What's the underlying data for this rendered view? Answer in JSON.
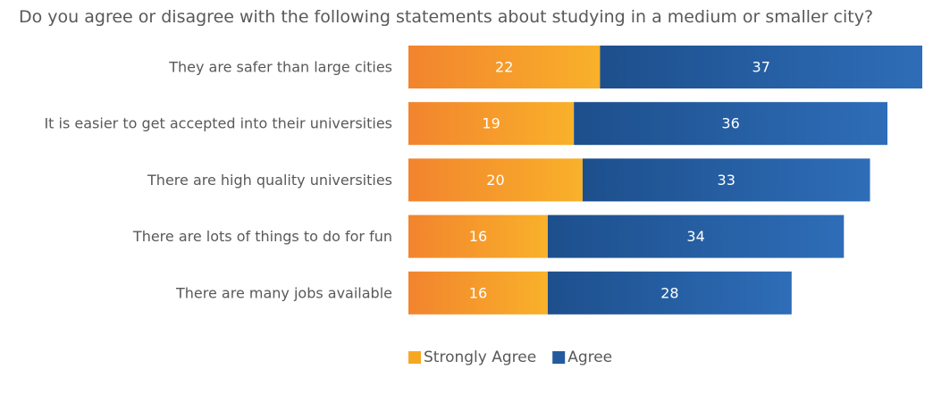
{
  "chart_data": {
    "type": "bar",
    "orientation": "horizontal",
    "stacked": true,
    "title": "Do you agree or disagree with the following statements about studying in a medium or smaller city?",
    "categories": [
      "They are safer than large cities",
      "It is easier to get accepted into their universities",
      "There are high quality universities",
      "There are lots of things to do for fun",
      "There are many jobs available"
    ],
    "series": [
      {
        "name": "Strongly Agree",
        "values": [
          22,
          19,
          20,
          16,
          16
        ],
        "color": "#F7A823"
      },
      {
        "name": "Agree",
        "values": [
          37,
          36,
          33,
          34,
          28
        ],
        "color": "#255B9E"
      }
    ],
    "legend_position": "bottom",
    "grid": false,
    "xlim": [
      0,
      59
    ]
  }
}
